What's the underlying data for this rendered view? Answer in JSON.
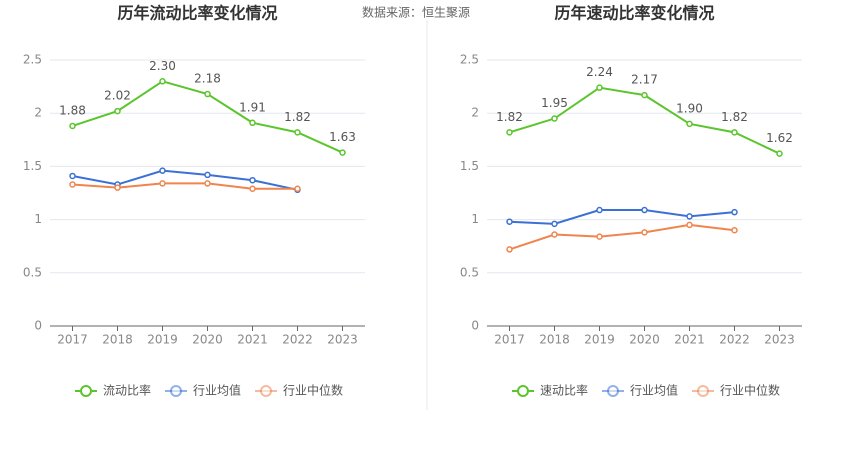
{
  "source": "数据来源：恒生聚源",
  "chart_data": [
    {
      "type": "line",
      "title": "历年流动比率变化情况",
      "categories": [
        "2017",
        "2018",
        "2019",
        "2020",
        "2021",
        "2022",
        "2023"
      ],
      "ylim": [
        0,
        2.5
      ],
      "yticks": [
        0,
        0.5,
        1,
        1.5,
        2,
        2.5
      ],
      "grid": true,
      "series": [
        {
          "name": "流动比率",
          "color": "#5bc52c",
          "values": [
            1.88,
            2.02,
            2.3,
            2.18,
            1.91,
            1.82,
            1.63
          ],
          "value_labels": [
            "1.88",
            "2.02",
            "2.30",
            "2.18",
            "1.91",
            "1.82",
            "1.63"
          ]
        },
        {
          "name": "行业均值",
          "color": "#3b70d6",
          "values": [
            1.41,
            1.33,
            1.46,
            1.42,
            1.37,
            1.28,
            null
          ]
        },
        {
          "name": "行业中位数",
          "color": "#f0844f",
          "values": [
            1.33,
            1.3,
            1.34,
            1.34,
            1.29,
            1.29,
            null
          ]
        }
      ]
    },
    {
      "type": "line",
      "title": "历年速动比率变化情况",
      "categories": [
        "2017",
        "2018",
        "2019",
        "2020",
        "2021",
        "2022",
        "2023"
      ],
      "ylim": [
        0,
        2.5
      ],
      "yticks": [
        0,
        0.5,
        1,
        1.5,
        2,
        2.5
      ],
      "grid": true,
      "series": [
        {
          "name": "速动比率",
          "color": "#5bc52c",
          "values": [
            1.82,
            1.95,
            2.24,
            2.17,
            1.9,
            1.82,
            1.62
          ],
          "value_labels": [
            "1.82",
            "1.95",
            "2.24",
            "2.17",
            "1.90",
            "1.82",
            "1.62"
          ]
        },
        {
          "name": "行业均值",
          "color": "#3b70d6",
          "values": [
            0.98,
            0.96,
            1.09,
            1.09,
            1.03,
            1.07,
            null
          ]
        },
        {
          "name": "行业中位数",
          "color": "#f0844f",
          "values": [
            0.72,
            0.86,
            0.84,
            0.88,
            0.95,
            0.9,
            null
          ]
        }
      ]
    }
  ]
}
